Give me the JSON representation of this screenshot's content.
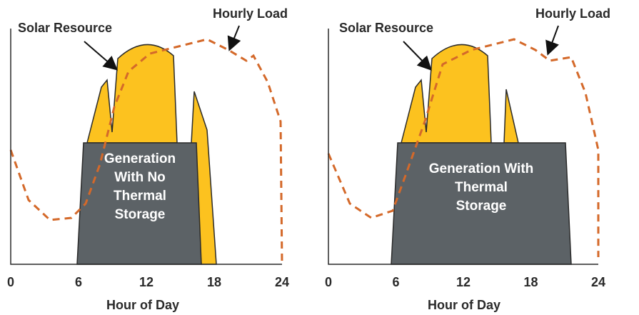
{
  "panels": [
    {
      "solar_label": "Solar Resource",
      "load_label": "Hourly Load",
      "box_lines": [
        "Generation",
        "With No",
        "Thermal",
        "Storage"
      ],
      "xlabel": "Hour of Day",
      "xlim": [
        0,
        24
      ],
      "xticks": [
        0,
        6,
        12,
        18,
        24
      ]
    },
    {
      "solar_label": "Solar Resource",
      "load_label": "Hourly Load",
      "box_lines": [
        "Generation With",
        "Thermal",
        "Storage"
      ],
      "xlabel": "Hour of Day",
      "xlim": [
        0,
        24
      ],
      "xticks": [
        0,
        6,
        12,
        18,
        24
      ]
    }
  ]
}
